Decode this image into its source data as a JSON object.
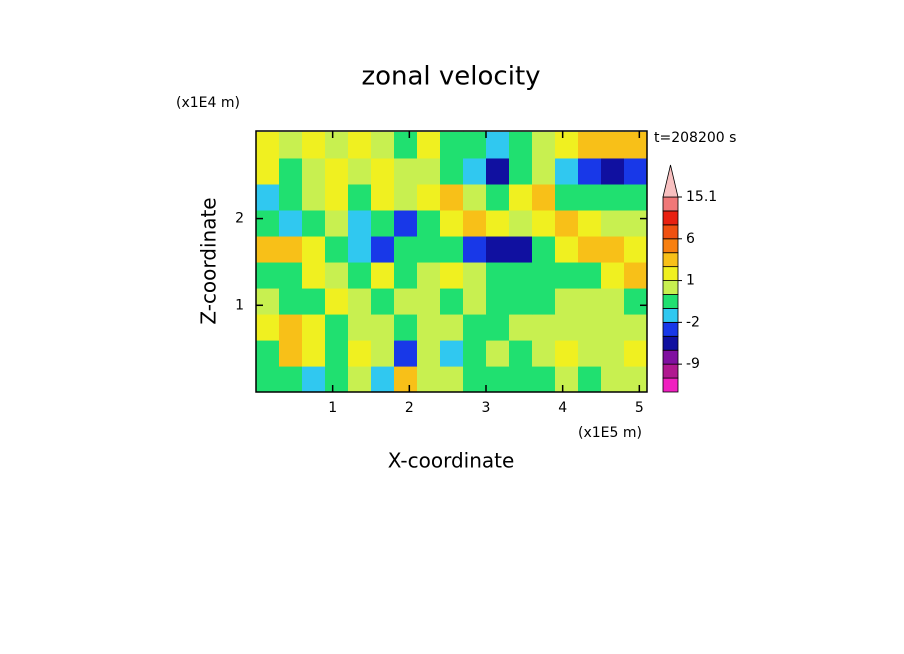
{
  "chart_data": {
    "type": "contour",
    "title": "zonal velocity",
    "xlabel": "X-coordinate",
    "ylabel": "Z-coordinate",
    "xunit": "(x1E5 m)",
    "yunit": "(x1E4 m)",
    "annotation": "t=208200 s",
    "xlim": [
      0,
      5.1
    ],
    "ylim": [
      0,
      3.01
    ],
    "xticks": [
      1,
      2,
      3,
      4,
      5
    ],
    "yticks": [
      1,
      2
    ],
    "x": [
      0.15,
      0.45,
      0.75,
      1.05,
      1.35,
      1.65,
      1.95,
      2.25,
      2.55,
      2.85,
      3.15,
      3.45,
      3.75,
      4.05,
      4.35,
      4.65,
      4.95
    ],
    "y": [
      0.15,
      0.45,
      0.75,
      1.05,
      1.35,
      1.65,
      1.95,
      2.25,
      2.55,
      2.85
    ],
    "values": [
      [
        -0.5,
        -0.5,
        -1.5,
        -0.5,
        0.5,
        -1.5,
        3,
        0.5,
        0.5,
        -0.5,
        -0.5,
        -0.5,
        -0.5,
        0.5,
        -0.5,
        0.5,
        0.5
      ],
      [
        -0.5,
        3,
        1.5,
        -0.5,
        1.5,
        0.5,
        -3,
        0.5,
        -1.5,
        -0.5,
        0.5,
        -0.5,
        0.5,
        1.5,
        0.5,
        0.5,
        1.5
      ],
      [
        1.5,
        3,
        1.5,
        -0.5,
        0.5,
        0.5,
        -0.5,
        0.5,
        0.5,
        -0.5,
        -0.5,
        0.5,
        0.5,
        0.5,
        0.5,
        0.5,
        0.5
      ],
      [
        0.5,
        -0.5,
        -0.5,
        1.5,
        0.5,
        -0.5,
        0.5,
        0.5,
        -0.5,
        0.5,
        -0.5,
        -0.5,
        -0.5,
        0.5,
        0.5,
        0.5,
        -0.5
      ],
      [
        -0.5,
        -0.5,
        1.5,
        0.5,
        -0.5,
        1.5,
        -0.5,
        0.5,
        1.5,
        0.5,
        -0.5,
        -0.5,
        -0.5,
        -0.5,
        -0.5,
        1.5,
        3
      ],
      [
        3,
        3,
        1.5,
        -0.5,
        -1.5,
        -3,
        -0.5,
        -0.5,
        -0.5,
        -3,
        -5,
        -5,
        -0.5,
        1.5,
        3,
        3,
        1.5
      ],
      [
        -0.5,
        -1.5,
        -0.5,
        0.5,
        -1.5,
        -0.5,
        -3,
        -0.5,
        1.5,
        3,
        1.5,
        0.5,
        1.5,
        3,
        1.5,
        0.5,
        0.5
      ],
      [
        -1.5,
        -0.5,
        0.5,
        1.5,
        -0.5,
        1.5,
        0.5,
        1.5,
        3,
        0.5,
        -0.5,
        1.5,
        3,
        -0.5,
        -0.5,
        -0.5,
        -0.5
      ],
      [
        1.5,
        -0.5,
        0.5,
        1.5,
        0.5,
        1.5,
        0.5,
        0.5,
        -0.5,
        -1.5,
        -5,
        -0.5,
        0.5,
        -1.5,
        -3,
        -5,
        -3
      ],
      [
        1.5,
        0.5,
        1.5,
        0.5,
        1.5,
        0.5,
        -0.5,
        1.5,
        -0.5,
        -0.5,
        -1.5,
        -0.5,
        0.5,
        1.5,
        3,
        3,
        3
      ]
    ],
    "colorbar": {
      "levels": [
        -12,
        -9,
        -6,
        -4,
        -2,
        -1,
        0,
        1,
        2,
        4,
        6,
        9,
        12,
        15.1
      ],
      "colors": [
        "#f020c0",
        "#b01890",
        "#8010a0",
        "#1010a0",
        "#1838e8",
        "#30c8f0",
        "#20e070",
        "#c8f050",
        "#f0f020",
        "#f8c018",
        "#f88010",
        "#f05010",
        "#e82010",
        "#f07878",
        "#f8c0c0"
      ],
      "ticks": [
        -9,
        -2,
        1,
        6,
        15.1
      ]
    }
  }
}
